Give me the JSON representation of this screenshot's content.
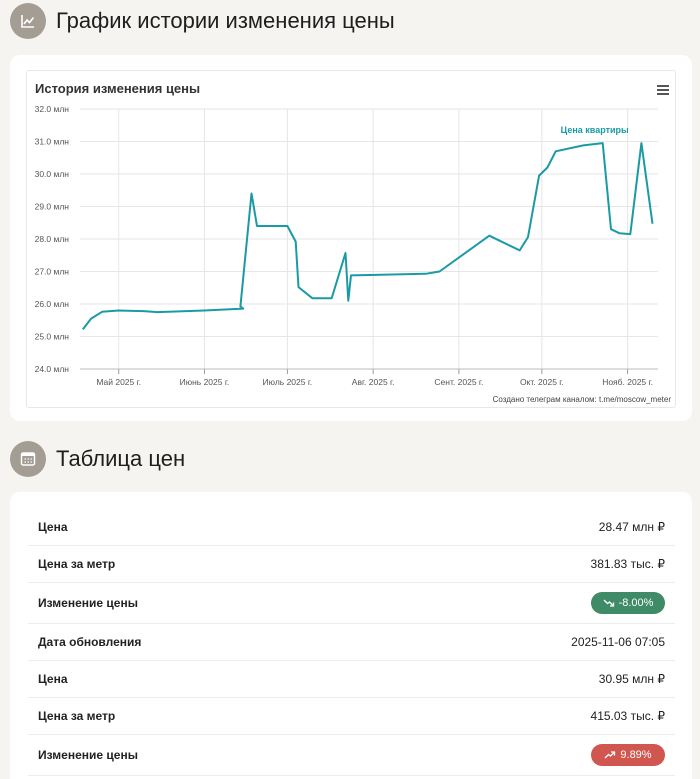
{
  "sections": {
    "chart_heading": "График истории изменения цены",
    "table_heading": "Таблица цен"
  },
  "chart": {
    "title": "История изменения цены",
    "credits": "Создано телеграм каналом: t.me/moscow_meter"
  },
  "chart_data": {
    "type": "line",
    "title": "История изменения цены",
    "x_type": "date",
    "xlim": [
      "2025-04-17",
      "2025-11-12"
    ],
    "ylim": [
      24.0,
      32.0
    ],
    "ytick_step": 1.0,
    "ytick_suffix": " млн",
    "xticks": [
      {
        "date": "2025-05-01",
        "label": "Май 2025 г."
      },
      {
        "date": "2025-06-01",
        "label": "Июнь 2025 г."
      },
      {
        "date": "2025-07-01",
        "label": "Июль 2025 г."
      },
      {
        "date": "2025-08-01",
        "label": "Авг. 2025 г."
      },
      {
        "date": "2025-09-01",
        "label": "Сент. 2025 г."
      },
      {
        "date": "2025-10-01",
        "label": "Окт. 2025 г."
      },
      {
        "date": "2025-11-01",
        "label": "Нояб. 2025 г."
      }
    ],
    "grid": true,
    "series": [
      {
        "name": "Цена квартиры",
        "color": "#1a9aa4",
        "points": [
          [
            "2025-04-18",
            25.22
          ],
          [
            "2025-04-21",
            25.55
          ],
          [
            "2025-04-25",
            25.76
          ],
          [
            "2025-05-01",
            25.8
          ],
          [
            "2025-05-10",
            25.78
          ],
          [
            "2025-05-15",
            25.75
          ],
          [
            "2025-06-01",
            25.8
          ],
          [
            "2025-06-15",
            25.86
          ],
          [
            "2025-06-14",
            25.92
          ],
          [
            "2025-06-18",
            29.4
          ],
          [
            "2025-06-20",
            28.4
          ],
          [
            "2025-07-01",
            28.4
          ],
          [
            "2025-07-04",
            27.92
          ],
          [
            "2025-07-05",
            26.52
          ],
          [
            "2025-07-10",
            26.18
          ],
          [
            "2025-07-17",
            26.18
          ],
          [
            "2025-07-22",
            27.57
          ],
          [
            "2025-07-23",
            26.1
          ],
          [
            "2025-07-24",
            26.88
          ],
          [
            "2025-08-20",
            26.93
          ],
          [
            "2025-08-25",
            27.0
          ],
          [
            "2025-09-12",
            28.1
          ],
          [
            "2025-09-23",
            27.65
          ],
          [
            "2025-09-26",
            28.06
          ],
          [
            "2025-09-30",
            29.95
          ],
          [
            "2025-10-03",
            30.2
          ],
          [
            "2025-10-06",
            30.7
          ],
          [
            "2025-10-16",
            30.88
          ],
          [
            "2025-10-23",
            30.95
          ],
          [
            "2025-10-26",
            28.3
          ],
          [
            "2025-10-29",
            28.18
          ],
          [
            "2025-11-02",
            28.15
          ],
          [
            "2025-11-06",
            30.95
          ],
          [
            "2025-11-10",
            28.47
          ]
        ]
      }
    ]
  },
  "table": {
    "rows": [
      {
        "label": "Цена",
        "value": "28.47 млн ₽"
      },
      {
        "label": "Цена за метр",
        "value": "381.83 тыс. ₽"
      },
      {
        "label": "Изменение цены",
        "value": "-8.00%",
        "trend": "down"
      },
      {
        "label": "Дата обновления",
        "value": "2025-11-06 07:05"
      },
      {
        "label": "Цена",
        "value": "30.95 млн ₽"
      },
      {
        "label": "Цена за метр",
        "value": "415.03 тыс. ₽"
      },
      {
        "label": "Изменение цены",
        "value": "9.89%",
        "trend": "up"
      }
    ]
  }
}
